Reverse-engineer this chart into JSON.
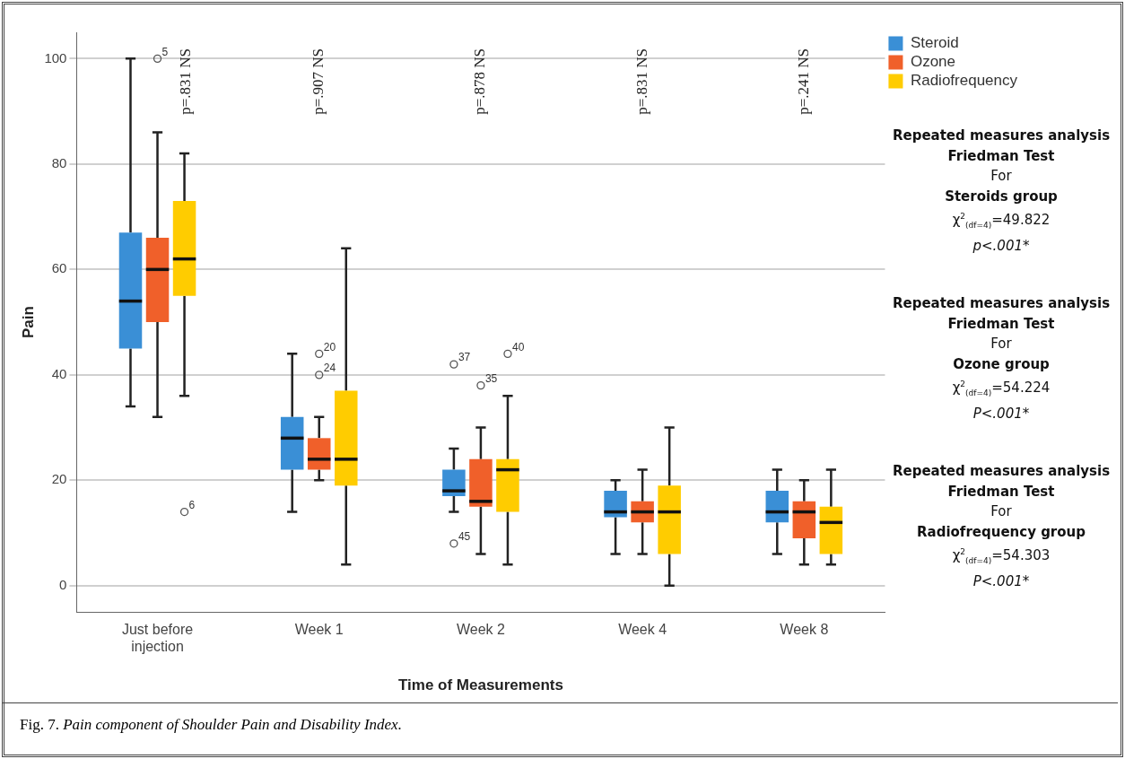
{
  "chart_data": {
    "type": "box",
    "xlabel": "Time of Measurements",
    "ylabel": "Pain",
    "categories": [
      "Just before injection",
      "Week 1",
      "Week 2",
      "Week 4",
      "Week 8"
    ],
    "ylim": [
      -5,
      105
    ],
    "yticks": [
      0,
      20,
      40,
      60,
      80,
      100
    ],
    "grid": "y",
    "legend": "top right",
    "series": [
      {
        "name": "Steroid",
        "color": "#3a8fd6",
        "boxes": [
          {
            "low": 34,
            "q1": 45,
            "median": 54,
            "q3": 67,
            "high": 100
          },
          {
            "low": 14,
            "q1": 22,
            "median": 28,
            "q3": 32,
            "high": 44
          },
          {
            "low": 14,
            "q1": 17,
            "median": 18,
            "q3": 22,
            "high": 26,
            "outliers": [
              42,
              8
            ]
          },
          {
            "low": 6,
            "q1": 13,
            "median": 14,
            "q3": 18,
            "high": 20
          },
          {
            "low": 6,
            "q1": 12,
            "median": 14,
            "q3": 18,
            "high": 22
          }
        ]
      },
      {
        "name": "Ozone",
        "color": "#f0602a",
        "boxes": [
          {
            "low": 32,
            "q1": 50,
            "median": 60,
            "q3": 66,
            "high": 86,
            "outliers": [
              100
            ]
          },
          {
            "low": 20,
            "q1": 22,
            "median": 24,
            "q3": 28,
            "high": 32,
            "outliers": [
              44,
              40
            ]
          },
          {
            "low": 6,
            "q1": 15,
            "median": 16,
            "q3": 24,
            "high": 30,
            "outliers": [
              38
            ]
          },
          {
            "low": 6,
            "q1": 12,
            "median": 14,
            "q3": 16,
            "high": 22
          },
          {
            "low": 4,
            "q1": 9,
            "median": 14,
            "q3": 16,
            "high": 20
          }
        ]
      },
      {
        "name": "Radiofrequency",
        "color": "#ffcc00",
        "boxes": [
          {
            "low": 36,
            "q1": 55,
            "median": 62,
            "q3": 73,
            "high": 82,
            "outliers": [
              14
            ]
          },
          {
            "low": 4,
            "q1": 19,
            "median": 24,
            "q3": 37,
            "high": 64
          },
          {
            "low": 4,
            "q1": 14,
            "median": 22,
            "q3": 24,
            "high": 36,
            "outliers": [
              44
            ]
          },
          {
            "low": 0,
            "q1": 6,
            "median": 14,
            "q3": 19,
            "high": 30
          },
          {
            "low": 4,
            "q1": 6,
            "median": 12,
            "q3": 15,
            "high": 22
          }
        ]
      }
    ],
    "annotations": [
      "5",
      "6",
      "20",
      "24",
      "37",
      "45",
      "35",
      "40",
      "p=.831 NS",
      "p=.907 NS",
      "p=.878 NS",
      "p=.831 NS",
      "p=.241 NS",
      "Repeated measures analysis\nFriedman Test\nFor\nSteroids group\nχ$^{2}$$_{(df=4)}$=49.822\np<.001*",
      "Repeated measures analysis\nFriedman Test\nFor\nOzone group\nχ$^{2}$$_{(df=4)}$=54.224\nP<.001*",
      "Repeated measures analysis\nFriedman Test\nFor\nRadiofrequency group\nχ$^{2}$$_{(df=4)}$=54.303\nP<.001*",
      "Fig. 7. Pain component of Shoulder Pain and Disability Index."
    ]
  }
}
